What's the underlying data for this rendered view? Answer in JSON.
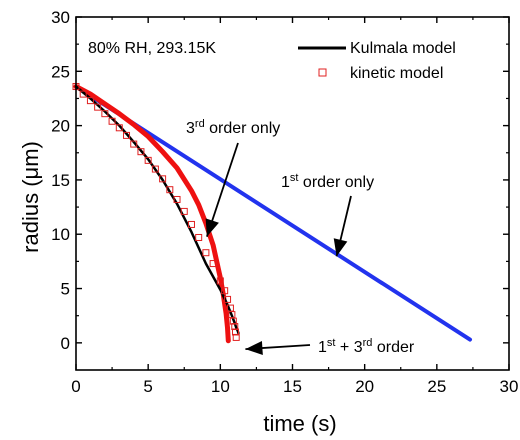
{
  "chart_data": {
    "type": "line",
    "annotation_condition": "80% RH, 293.15K",
    "xlabel": "time (s)",
    "ylabel": "radius (μm)",
    "xlim": [
      0,
      30
    ],
    "ylim": [
      -2.5,
      30
    ],
    "xticks": [
      "0",
      "5",
      "10",
      "15",
      "20",
      "25",
      "30"
    ],
    "yticks": [
      "0",
      "5",
      "10",
      "15",
      "20",
      "25",
      "30"
    ],
    "legend_position": "top-right",
    "series": [
      {
        "name": "Kulmala model",
        "style": "line",
        "color": "#000000",
        "x": [
          0,
          1,
          2,
          3,
          4,
          5,
          6,
          7,
          8,
          9,
          10,
          10.5,
          10.8,
          11.0,
          11.1,
          11.2,
          11.25
        ],
        "y": [
          23.6,
          22.5,
          21.3,
          20.0,
          18.5,
          16.9,
          15.0,
          12.8,
          10.2,
          7.3,
          4.9,
          3.5,
          2.5,
          1.8,
          1.4,
          1.1,
          0.9
        ]
      },
      {
        "name": "kinetic model",
        "style": "marker",
        "color": "#e02020",
        "x": [
          0,
          0.5,
          1,
          1.5,
          2,
          2.5,
          3,
          3.5,
          4,
          4.5,
          5,
          5.5,
          6,
          6.5,
          7,
          7.5,
          8,
          8.5,
          9,
          9.5,
          10,
          10.3,
          10.5,
          10.7,
          10.8,
          10.9,
          11.0,
          11.05,
          11.1
        ],
        "y": [
          23.6,
          22.9,
          22.3,
          21.7,
          21.1,
          20.4,
          19.8,
          19.1,
          18.3,
          17.6,
          16.8,
          16.0,
          15.1,
          14.1,
          13.2,
          12.1,
          10.9,
          9.7,
          8.3,
          7.3,
          5.7,
          4.8,
          4.0,
          3.2,
          2.6,
          2.0,
          1.5,
          1.0,
          0.5
        ]
      },
      {
        "name": "3rd order only",
        "style": "line",
        "color": "#ee1111",
        "x": [
          0,
          1,
          2,
          3,
          4,
          5,
          6,
          7,
          8,
          8.5,
          9,
          9.5,
          10,
          10.2,
          10.4,
          10.5,
          10.55
        ],
        "y": [
          23.6,
          22.9,
          22.0,
          21.1,
          20.1,
          19.0,
          17.6,
          16.1,
          14.0,
          12.7,
          11.0,
          9.0,
          6.0,
          4.5,
          2.7,
          1.4,
          0.2
        ]
      },
      {
        "name": "1st order only",
        "style": "line",
        "color": "#2233ee",
        "x": [
          0,
          27.3
        ],
        "y": [
          23.6,
          0.3
        ]
      }
    ],
    "annotations": [
      {
        "text_base": "3",
        "text_sup": "rd",
        "text_rest": " order only",
        "target_x": 9.0,
        "target_y": 9.5
      },
      {
        "text_base": "1",
        "text_sup": "st",
        "text_rest": " order only",
        "target_x": 17.5,
        "target_y": 8.7
      },
      {
        "text_base": "1",
        "text_sup": "st",
        "text_mid": " + 3",
        "text_sup2": "rd",
        "text_rest": " order",
        "target_x": 11.6,
        "target_y": -0.3
      }
    ]
  }
}
